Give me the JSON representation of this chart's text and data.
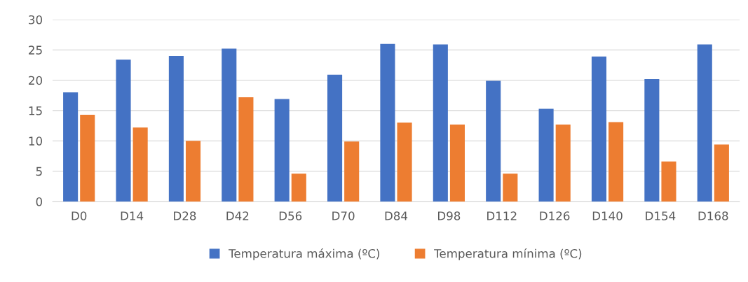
{
  "chart_data": {
    "type": "bar",
    "categories": [
      "D0",
      "D14",
      "D28",
      "D42",
      "D56",
      "D70",
      "D84",
      "D98",
      "D112",
      "D126",
      "D140",
      "D154",
      "D168"
    ],
    "series": [
      {
        "name": "Temperatura máxima (ºC)",
        "color": "#4472c4",
        "values": [
          18.0,
          23.4,
          24.0,
          25.2,
          16.9,
          20.9,
          26.0,
          25.9,
          19.9,
          15.3,
          23.9,
          20.2,
          25.9
        ]
      },
      {
        "name": "Temperatura mínima (ºC)",
        "color": "#ed7d31",
        "values": [
          14.3,
          12.2,
          10.0,
          17.2,
          4.6,
          9.9,
          13.0,
          12.7,
          4.6,
          12.7,
          13.1,
          6.6,
          9.4
        ]
      }
    ],
    "ylim": [
      0,
      30
    ],
    "yticks": [
      0,
      5,
      10,
      15,
      20,
      25,
      30
    ],
    "grid": "y",
    "legend": "bottom"
  }
}
